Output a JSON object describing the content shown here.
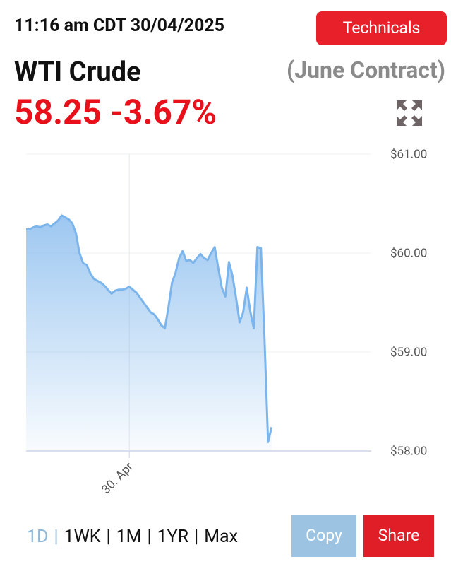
{
  "header": {
    "timestamp": "11:16 am CDT 30/04/2025",
    "technicals_button": "Technicals",
    "name": "WTI Crude",
    "contract": "(June Contract)",
    "price": "58.25",
    "change": "-3.67%"
  },
  "chart_data": {
    "type": "area",
    "color": "#7cb5ec",
    "categories": [
      null,
      null,
      null,
      null,
      null,
      null,
      null,
      null,
      null,
      null,
      null,
      null,
      null,
      null,
      null,
      null,
      null,
      null,
      null,
      null,
      null,
      null,
      null,
      null,
      null,
      null,
      null,
      null,
      null,
      "30. Apr",
      null,
      null,
      null,
      null,
      null,
      null,
      null,
      null,
      null,
      null,
      null,
      null,
      null,
      null,
      null,
      null,
      null,
      null,
      null,
      null,
      null,
      null,
      null,
      null,
      null,
      null,
      null,
      null,
      null,
      null,
      null,
      null,
      null,
      null,
      null,
      null,
      null,
      null,
      null,
      null,
      null,
      null,
      null,
      null,
      null,
      null,
      null,
      null,
      null,
      null,
      null,
      null,
      null,
      null,
      null,
      null,
      null,
      null,
      null,
      null,
      null,
      null,
      null,
      null,
      null,
      null,
      null,
      null
    ],
    "values": [
      60.24,
      60.24,
      60.26,
      60.27,
      60.26,
      60.28,
      60.29,
      60.27,
      60.3,
      60.33,
      60.38,
      60.36,
      60.34,
      60.3,
      60.2,
      60.0,
      59.9,
      59.88,
      59.8,
      59.74,
      59.72,
      59.7,
      59.67,
      59.63,
      59.59,
      59.62,
      59.63,
      59.63,
      59.64,
      59.66,
      59.63,
      59.6,
      59.55,
      59.5,
      59.45,
      59.4,
      59.38,
      59.33,
      59.27,
      59.24,
      59.45,
      59.7,
      59.8,
      59.95,
      60.02,
      59.92,
      59.93,
      59.9,
      59.95,
      59.99,
      59.95,
      59.93,
      60.0,
      60.06,
      59.85,
      59.65,
      59.56,
      59.91,
      59.77,
      59.55,
      59.3,
      59.4,
      59.65,
      59.41,
      59.24,
      60.06,
      60.05,
      59.13,
      58.09,
      58.24,
      null,
      null,
      null,
      null,
      null,
      null,
      null,
      null,
      null,
      null,
      null,
      null,
      null,
      null,
      null,
      null,
      null,
      null,
      null,
      null,
      null,
      null,
      null,
      null,
      null,
      null,
      null,
      null
    ],
    "ylim": [
      58,
      61
    ],
    "yticks": [
      {
        "value": 58,
        "label": "$58.00"
      },
      {
        "value": 59,
        "label": "$59.00"
      },
      {
        "value": 60,
        "label": "$60.00"
      },
      {
        "value": 61,
        "label": "$61.00"
      }
    ],
    "grid": true
  },
  "ranges": [
    "1D",
    "1WK",
    "1M",
    "1YR",
    "Max"
  ],
  "copy_button": "Copy",
  "share_button": "Share"
}
